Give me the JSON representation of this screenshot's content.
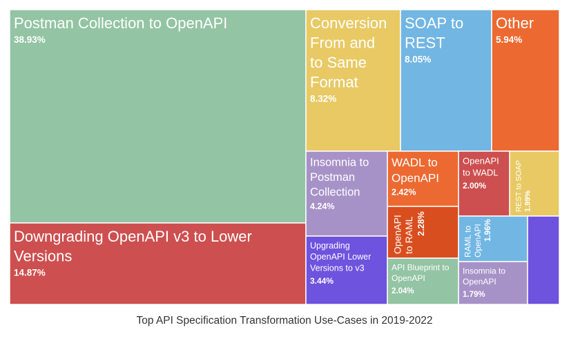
{
  "chart_data": {
    "type": "treemap",
    "title": "Top API Specification Transformation Use-Cases in 2019-2022",
    "items": [
      {
        "label": "Postman Collection to OpenAPI",
        "value": 38.93,
        "value_label": "38.93%",
        "color": "#93c4a3"
      },
      {
        "label": "Downgrading OpenAPI v3 to Lower Versions",
        "value": 14.87,
        "value_label": "14.87%",
        "color": "#cd4f4f"
      },
      {
        "label": "Conversion From and to Same Format",
        "value": 8.32,
        "value_label": "8.32%",
        "color": "#e8c964"
      },
      {
        "label": "SOAP to REST",
        "value": 8.05,
        "value_label": "8.05%",
        "color": "#72b6e3"
      },
      {
        "label": "Other",
        "value": 5.94,
        "value_label": "5.94%",
        "color": "#ec6a32"
      },
      {
        "label": "Insomnia to Postman Collection",
        "value": 4.24,
        "value_label": "4.24%",
        "color": "#a792c8"
      },
      {
        "label": "Upgrading OpenAPI Lower Versions to v3",
        "value": 3.44,
        "value_label": "3.44%",
        "color": "#6d53de"
      },
      {
        "label": "WADL to OpenAPI",
        "value": 2.42,
        "value_label": "2.42%",
        "color": "#ec6a32"
      },
      {
        "label": "OpenAPI to RAML",
        "value": 2.28,
        "value_label": "2.28%",
        "color": "#d94e1f"
      },
      {
        "label": "API Blueprint to OpenAPI",
        "value": 2.04,
        "value_label": "2.04%",
        "color": "#93c4a3"
      },
      {
        "label": "OpenAPI to WADL",
        "value": 2.0,
        "value_label": "2.00%",
        "color": "#cd4f4f"
      },
      {
        "label": "REST to SOAP",
        "value": 1.99,
        "value_label": "1.99%",
        "color": "#e8c964"
      },
      {
        "label": "RAML to OpenAPI",
        "value": 1.96,
        "value_label": "1.96%",
        "color": "#72b6e3"
      },
      {
        "label": "Insomnia to OpenAPI",
        "value": 1.79,
        "value_label": "1.79%",
        "color": "#a792c8"
      },
      {
        "label": "",
        "value": null,
        "value_label": "",
        "color": "#6d53de"
      }
    ]
  }
}
